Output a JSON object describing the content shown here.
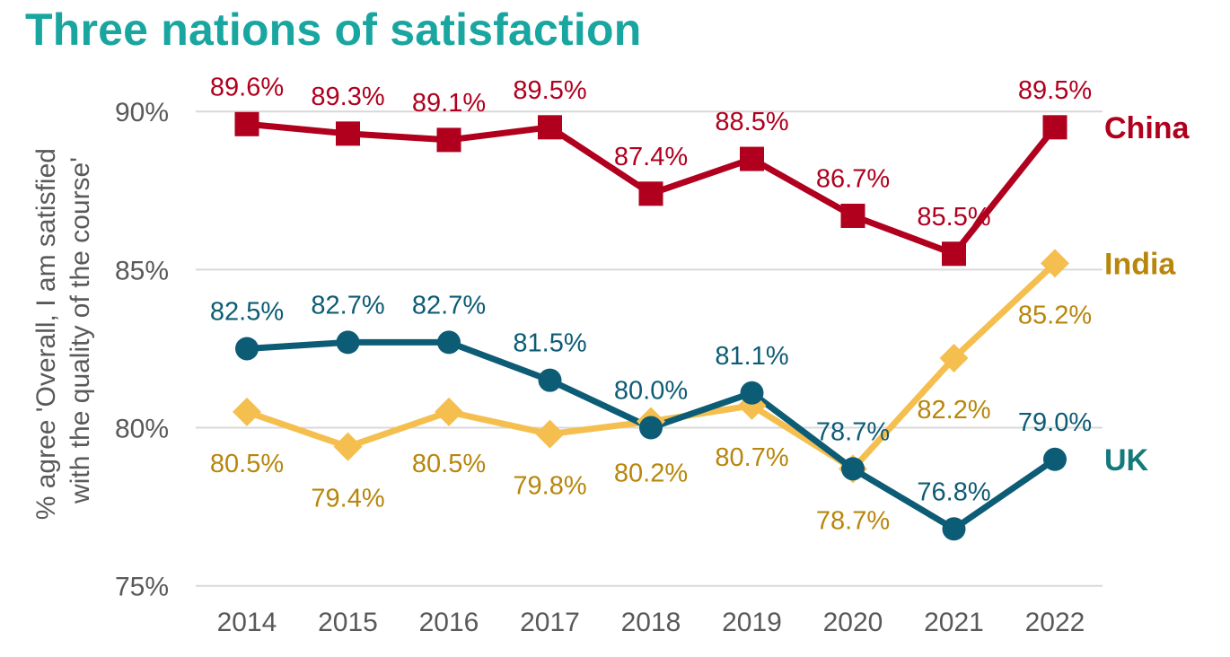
{
  "chart_data": {
    "type": "line",
    "title": "Three nations of satisfaction",
    "ylabel": "% agree 'Overall, I am satisfied with the quality of the course'",
    "ylabel_lines": [
      "% agree 'Overall, I am satisfied",
      "with the quality of the course'"
    ],
    "xlabel": "",
    "categories": [
      "2014",
      "2015",
      "2016",
      "2017",
      "2018",
      "2019",
      "2020",
      "2021",
      "2022"
    ],
    "ylim": [
      75,
      91
    ],
    "yticks": [
      75,
      80,
      85,
      90
    ],
    "ytick_labels": [
      "75%",
      "80%",
      "85%",
      "90%"
    ],
    "grid": true,
    "legend": "series names at right end of lines",
    "series": [
      {
        "name": "China",
        "color": "#b0001e",
        "marker": "square",
        "values": [
          89.6,
          89.3,
          89.1,
          89.5,
          87.4,
          88.5,
          86.7,
          85.5,
          89.5
        ],
        "labels": [
          "89.6%",
          "89.3%",
          "89.1%",
          "89.5%",
          "87.4%",
          "88.5%",
          "86.7%",
          "85.5%",
          "89.5%"
        ],
        "label_pos": [
          "above",
          "above",
          "above",
          "above",
          "above",
          "above",
          "above",
          "above",
          "above"
        ]
      },
      {
        "name": "India",
        "color": "#f5bf4f",
        "label_color": "#b8860b",
        "marker": "diamond",
        "values": [
          80.5,
          79.4,
          80.5,
          79.8,
          80.2,
          80.7,
          78.7,
          82.2,
          85.2
        ],
        "labels": [
          "80.5%",
          "79.4%",
          "80.5%",
          "79.8%",
          "80.2%",
          "80.7%",
          "78.7%",
          "82.2%",
          "85.2%"
        ],
        "label_pos": [
          "below",
          "below",
          "below",
          "below",
          "below",
          "below",
          "below",
          "below",
          "below"
        ]
      },
      {
        "name": "UK",
        "color": "#0d5c75",
        "name_color": "#127a7a",
        "marker": "circle",
        "values": [
          82.5,
          82.7,
          82.7,
          81.5,
          80.0,
          81.1,
          78.7,
          76.8,
          79.0
        ],
        "labels": [
          "82.5%",
          "82.7%",
          "82.7%",
          "81.5%",
          "80.0%",
          "81.1%",
          "78.7%",
          "76.8%",
          "79.0%"
        ],
        "label_pos": [
          "above",
          "above",
          "above",
          "above",
          "above",
          "above",
          "above",
          "above",
          "above"
        ]
      }
    ]
  }
}
